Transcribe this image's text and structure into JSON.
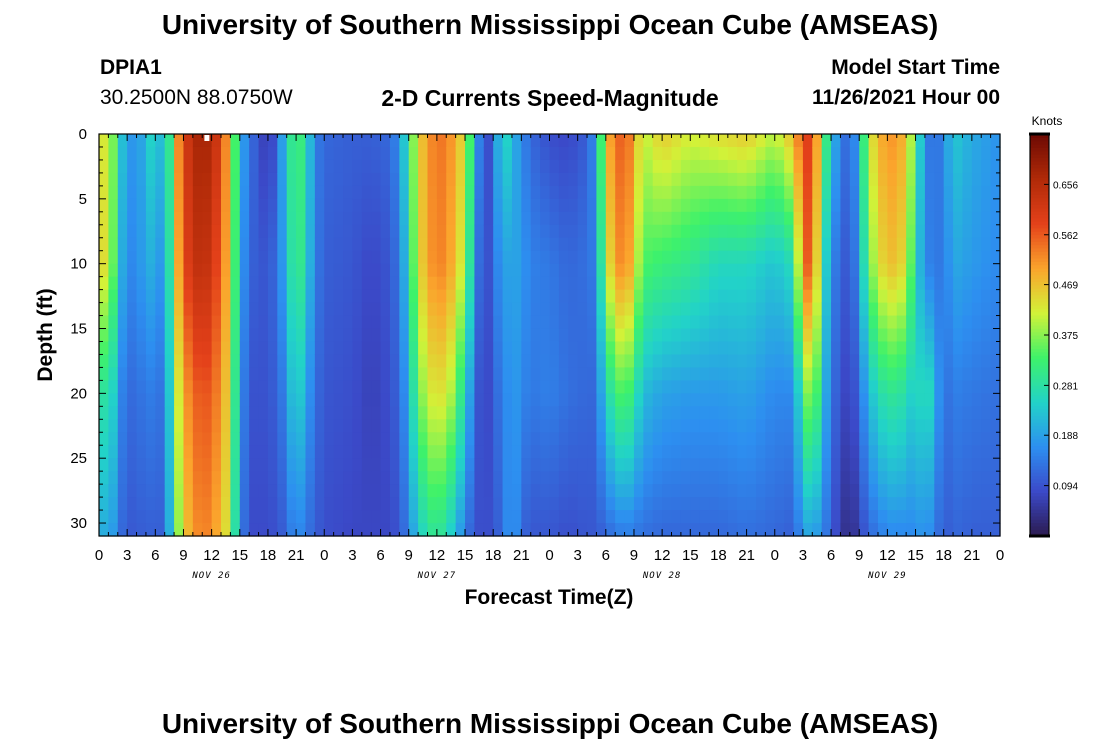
{
  "header": {
    "title": "University of Southern Mississippi Ocean Cube (AMSEAS)",
    "station_name": "DPIA1",
    "station_coords": "30.2500N  88.0750W",
    "plot_title": "2-D Currents Speed-Magnitude",
    "model_start_label": "Model Start Time",
    "model_start_value": "11/26/2021 Hour 00",
    "footer_title": "University of Southern Mississippi Ocean Cube (AMSEAS)"
  },
  "colors": {
    "axis": "#000000",
    "background": "#ffffff",
    "marker": "#ffffff",
    "colormap": [
      "#2b1a4d",
      "#3b49c8",
      "#2d8ff0",
      "#22d3c8",
      "#3ef26a",
      "#d2f238",
      "#fba42c",
      "#e4411a",
      "#b02a08",
      "#6e0a03"
    ]
  },
  "chart_data": {
    "type": "heatmap",
    "xlabel": "Forecast Time(Z)",
    "ylabel": "Depth (ft)",
    "colorbar_label": "Knots",
    "x_range_hours": [
      0,
      96
    ],
    "y_range_ft": [
      0,
      31
    ],
    "x_ticks": [
      {
        "hour": 0,
        "label": "0"
      },
      {
        "hour": 3,
        "label": "3"
      },
      {
        "hour": 6,
        "label": "6"
      },
      {
        "hour": 9,
        "label": "9"
      },
      {
        "hour": 12,
        "label": "12"
      },
      {
        "hour": 15,
        "label": "15"
      },
      {
        "hour": 18,
        "label": "18"
      },
      {
        "hour": 21,
        "label": "21"
      },
      {
        "hour": 24,
        "label": "0"
      },
      {
        "hour": 27,
        "label": "3"
      },
      {
        "hour": 30,
        "label": "6"
      },
      {
        "hour": 33,
        "label": "9"
      },
      {
        "hour": 36,
        "label": "12"
      },
      {
        "hour": 39,
        "label": "15"
      },
      {
        "hour": 42,
        "label": "18"
      },
      {
        "hour": 45,
        "label": "21"
      },
      {
        "hour": 48,
        "label": "0"
      },
      {
        "hour": 51,
        "label": "3"
      },
      {
        "hour": 54,
        "label": "6"
      },
      {
        "hour": 57,
        "label": "9"
      },
      {
        "hour": 60,
        "label": "12"
      },
      {
        "hour": 63,
        "label": "15"
      },
      {
        "hour": 66,
        "label": "18"
      },
      {
        "hour": 69,
        "label": "21"
      },
      {
        "hour": 72,
        "label": "0"
      },
      {
        "hour": 75,
        "label": "3"
      },
      {
        "hour": 78,
        "label": "6"
      },
      {
        "hour": 81,
        "label": "9"
      },
      {
        "hour": 84,
        "label": "12"
      },
      {
        "hour": 87,
        "label": "15"
      },
      {
        "hour": 90,
        "label": "18"
      },
      {
        "hour": 93,
        "label": "21"
      },
      {
        "hour": 96,
        "label": "0"
      }
    ],
    "y_ticks": [
      0,
      5,
      10,
      15,
      20,
      25,
      30
    ],
    "date_labels": [
      {
        "hour": 12,
        "label": "NOV 26"
      },
      {
        "hour": 36,
        "label": "NOV 27"
      },
      {
        "hour": 60,
        "label": "NOV 28"
      },
      {
        "hour": 84,
        "label": "NOV 29"
      }
    ],
    "colorbar_range": [
      0,
      0.75
    ],
    "colorbar_ticks": [
      "0.094",
      "0.188",
      "0.281",
      "0.375",
      "0.469",
      "0.562",
      "0.656"
    ],
    "colorbar_tick_values": [
      0.094,
      0.188,
      0.281,
      0.375,
      0.469,
      0.562,
      0.656
    ],
    "depth_nodes": [
      0,
      10,
      20,
      31
    ],
    "speed_profile": [
      {
        "hour": 0,
        "speeds": [
          0.4,
          0.42,
          0.25,
          0.18
        ]
      },
      {
        "hour": 1,
        "speeds": [
          0.45,
          0.46,
          0.32,
          0.22
        ]
      },
      {
        "hour": 2,
        "speeds": [
          0.28,
          0.25,
          0.18,
          0.14
        ]
      },
      {
        "hour": 3,
        "speeds": [
          0.17,
          0.15,
          0.12,
          0.1
        ]
      },
      {
        "hour": 5,
        "speeds": [
          0.2,
          0.19,
          0.14,
          0.11
        ]
      },
      {
        "hour": 6,
        "speeds": [
          0.3,
          0.22,
          0.15,
          0.11
        ]
      },
      {
        "hour": 7,
        "speeds": [
          0.15,
          0.14,
          0.12,
          0.11
        ]
      },
      {
        "hour": 8,
        "speeds": [
          0.45,
          0.42,
          0.35,
          0.3
        ]
      },
      {
        "hour": 9,
        "speeds": [
          0.6,
          0.58,
          0.5,
          0.46
        ]
      },
      {
        "hour": 11,
        "speeds": [
          0.7,
          0.66,
          0.58,
          0.54
        ]
      },
      {
        "hour": 13,
        "speeds": [
          0.6,
          0.56,
          0.52,
          0.48
        ]
      },
      {
        "hour": 14,
        "speeds": [
          0.45,
          0.45,
          0.42,
          0.4
        ]
      },
      {
        "hour": 15,
        "speeds": [
          0.22,
          0.2,
          0.18,
          0.16
        ]
      },
      {
        "hour": 16,
        "speeds": [
          0.13,
          0.12,
          0.1,
          0.09
        ]
      },
      {
        "hour": 17,
        "speeds": [
          0.1,
          0.1,
          0.09,
          0.08
        ]
      },
      {
        "hour": 18,
        "speeds": [
          0.05,
          0.1,
          0.1,
          0.09
        ]
      },
      {
        "hour": 19,
        "speeds": [
          0.12,
          0.13,
          0.11,
          0.09
        ]
      },
      {
        "hour": 20,
        "speeds": [
          0.25,
          0.22,
          0.17,
          0.12
        ]
      },
      {
        "hour": 21,
        "speeds": [
          0.35,
          0.34,
          0.27,
          0.17
        ]
      },
      {
        "hour": 22,
        "speeds": [
          0.28,
          0.26,
          0.2,
          0.14
        ]
      },
      {
        "hour": 23,
        "speeds": [
          0.15,
          0.15,
          0.13,
          0.11
        ]
      },
      {
        "hour": 24,
        "speeds": [
          0.12,
          0.11,
          0.1,
          0.09
        ]
      },
      {
        "hour": 27,
        "speeds": [
          0.11,
          0.1,
          0.09,
          0.08
        ]
      },
      {
        "hour": 29,
        "speeds": [
          0.11,
          0.08,
          0.07,
          0.08
        ]
      },
      {
        "hour": 31,
        "speeds": [
          0.12,
          0.1,
          0.09,
          0.08
        ]
      },
      {
        "hour": 32,
        "speeds": [
          0.17,
          0.14,
          0.12,
          0.1
        ]
      },
      {
        "hour": 33,
        "speeds": [
          0.3,
          0.26,
          0.2,
          0.15
        ]
      },
      {
        "hour": 34,
        "speeds": [
          0.45,
          0.44,
          0.36,
          0.24
        ]
      },
      {
        "hour": 36,
        "speeds": [
          0.55,
          0.54,
          0.45,
          0.31
        ]
      },
      {
        "hour": 38,
        "speeds": [
          0.5,
          0.48,
          0.38,
          0.22
        ]
      },
      {
        "hour": 39,
        "speeds": [
          0.42,
          0.38,
          0.24,
          0.14
        ]
      },
      {
        "hour": 40,
        "speeds": [
          0.25,
          0.2,
          0.14,
          0.1
        ]
      },
      {
        "hour": 41,
        "speeds": [
          0.05,
          0.05,
          0.05,
          0.08
        ]
      },
      {
        "hour": 42,
        "speeds": [
          0.13,
          0.14,
          0.12,
          0.1
        ]
      },
      {
        "hour": 43,
        "speeds": [
          0.28,
          0.18,
          0.14,
          0.12
        ]
      },
      {
        "hour": 44,
        "speeds": [
          0.22,
          0.2,
          0.19,
          0.2
        ]
      },
      {
        "hour": 45,
        "speeds": [
          0.16,
          0.18,
          0.16,
          0.12
        ]
      },
      {
        "hour": 46,
        "speeds": [
          0.12,
          0.15,
          0.14,
          0.1
        ]
      },
      {
        "hour": 48,
        "speeds": [
          0.09,
          0.14,
          0.15,
          0.1
        ]
      },
      {
        "hour": 50,
        "speeds": [
          0.08,
          0.12,
          0.13,
          0.09
        ]
      },
      {
        "hour": 52,
        "speeds": [
          0.11,
          0.13,
          0.12,
          0.1
        ]
      },
      {
        "hour": 53,
        "speeds": [
          0.18,
          0.15,
          0.12,
          0.1
        ]
      },
      {
        "hour": 54,
        "speeds": [
          0.48,
          0.42,
          0.26,
          0.12
        ]
      },
      {
        "hour": 56,
        "speeds": [
          0.58,
          0.55,
          0.36,
          0.15
        ]
      },
      {
        "hour": 58,
        "speeds": [
          0.4,
          0.34,
          0.22,
          0.13
        ]
      },
      {
        "hour": 60,
        "speeds": [
          0.46,
          0.32,
          0.19,
          0.12
        ]
      },
      {
        "hour": 63,
        "speeds": [
          0.42,
          0.3,
          0.18,
          0.12
        ]
      },
      {
        "hour": 66,
        "speeds": [
          0.44,
          0.26,
          0.18,
          0.12
        ]
      },
      {
        "hour": 69,
        "speeds": [
          0.46,
          0.26,
          0.19,
          0.13
        ]
      },
      {
        "hour": 72,
        "speeds": [
          0.4,
          0.23,
          0.16,
          0.12
        ]
      },
      {
        "hour": 74,
        "speeds": [
          0.48,
          0.27,
          0.16,
          0.11
        ]
      },
      {
        "hour": 75,
        "speeds": [
          0.58,
          0.54,
          0.32,
          0.18
        ]
      },
      {
        "hour": 76,
        "speeds": [
          0.6,
          0.58,
          0.42,
          0.2
        ]
      },
      {
        "hour": 77,
        "speeds": [
          0.4,
          0.32,
          0.24,
          0.16
        ]
      },
      {
        "hour": 78,
        "speeds": [
          0.22,
          0.16,
          0.14,
          0.11
        ]
      },
      {
        "hour": 79,
        "speeds": [
          0.16,
          0.12,
          0.09,
          0.06
        ]
      },
      {
        "hour": 80,
        "speeds": [
          0.1,
          0.09,
          0.07,
          0.03
        ]
      },
      {
        "hour": 81,
        "speeds": [
          0.22,
          0.18,
          0.12,
          0.07
        ]
      },
      {
        "hour": 82,
        "speeds": [
          0.42,
          0.36,
          0.22,
          0.12
        ]
      },
      {
        "hour": 84,
        "speeds": [
          0.52,
          0.48,
          0.3,
          0.16
        ]
      },
      {
        "hour": 86,
        "speeds": [
          0.48,
          0.44,
          0.28,
          0.16
        ]
      },
      {
        "hour": 87,
        "speeds": [
          0.32,
          0.26,
          0.22,
          0.16
        ]
      },
      {
        "hour": 88,
        "speeds": [
          0.16,
          0.16,
          0.3,
          0.18
        ]
      },
      {
        "hour": 89,
        "speeds": [
          0.12,
          0.14,
          0.22,
          0.15
        ]
      },
      {
        "hour": 90,
        "speeds": [
          0.16,
          0.14,
          0.12,
          0.1
        ]
      },
      {
        "hour": 91,
        "speeds": [
          0.24,
          0.2,
          0.15,
          0.12
        ]
      },
      {
        "hour": 93,
        "speeds": [
          0.2,
          0.18,
          0.14,
          0.11
        ]
      },
      {
        "hour": 96,
        "speeds": [
          0.17,
          0.16,
          0.13,
          0.11
        ]
      }
    ]
  }
}
